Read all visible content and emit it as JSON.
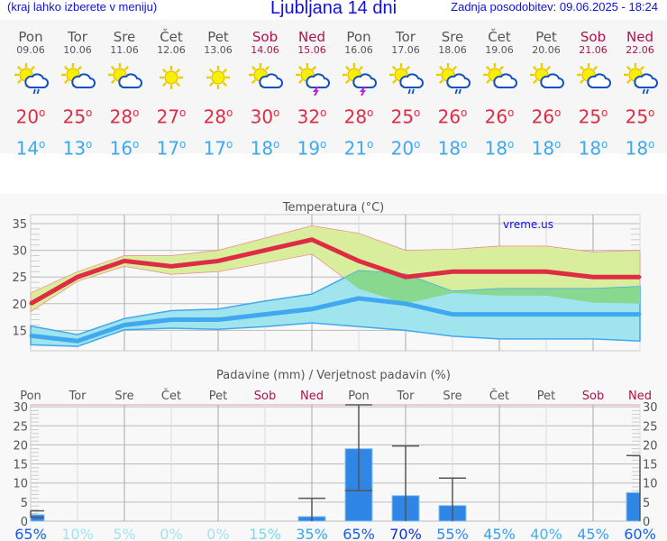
{
  "header": {
    "hint": "(kraj lahko izberete v meniju)",
    "title": "Ljubljana 14 dni",
    "updated": "Zadnja posodobitev: 09.06.2025 - 18:24"
  },
  "days": [
    {
      "name": "Pon",
      "date": "09.06",
      "icon": "sun-cloud-rain",
      "max": "20",
      "min": "14",
      "weekend": false
    },
    {
      "name": "Tor",
      "date": "10.06",
      "icon": "sun-cloud",
      "max": "25",
      "min": "13",
      "weekend": false
    },
    {
      "name": "Sre",
      "date": "11.06",
      "icon": "sun-cloud",
      "max": "28",
      "min": "16",
      "weekend": false
    },
    {
      "name": "Čet",
      "date": "12.06",
      "icon": "sun",
      "max": "27",
      "min": "17",
      "weekend": false
    },
    {
      "name": "Pet",
      "date": "13.06",
      "icon": "sun",
      "max": "28",
      "min": "17",
      "weekend": false
    },
    {
      "name": "Sob",
      "date": "14.06",
      "icon": "sun-cloud",
      "max": "30",
      "min": "18",
      "weekend": true
    },
    {
      "name": "Ned",
      "date": "15.06",
      "icon": "sun-cloud-storm",
      "max": "32",
      "min": "19",
      "weekend": true
    },
    {
      "name": "Pon",
      "date": "16.06",
      "icon": "sun-cloud-storm",
      "max": "28",
      "min": "21",
      "weekend": false
    },
    {
      "name": "Tor",
      "date": "17.06",
      "icon": "sun-cloud-rain",
      "max": "25",
      "min": "20",
      "weekend": false
    },
    {
      "name": "Sre",
      "date": "18.06",
      "icon": "sun-cloud-rain",
      "max": "26",
      "min": "18",
      "weekend": false
    },
    {
      "name": "Čet",
      "date": "19.06",
      "icon": "sun-cloud",
      "max": "26",
      "min": "18",
      "weekend": false
    },
    {
      "name": "Pet",
      "date": "20.06",
      "icon": "sun-cloud",
      "max": "26",
      "min": "18",
      "weekend": false
    },
    {
      "name": "Sob",
      "date": "21.06",
      "icon": "sun-cloud",
      "max": "25",
      "min": "18",
      "weekend": true
    },
    {
      "name": "Ned",
      "date": "22.06",
      "icon": "sun-cloud-rain",
      "max": "25",
      "min": "18",
      "weekend": true
    }
  ],
  "degree": "o",
  "chart_data": [
    {
      "type": "area",
      "title": "Temperatura (°C)",
      "watermark": "vreme.us",
      "ylim": [
        12,
        36
      ],
      "yticks": [
        15,
        20,
        25,
        30,
        35
      ],
      "grid": true,
      "series": [
        {
          "role": "max-mean",
          "values": [
            20,
            25,
            28,
            27,
            28,
            30,
            32,
            28,
            25,
            26,
            26,
            26,
            25,
            25
          ],
          "color": "#dd2c44"
        },
        {
          "role": "max-upper",
          "values": [
            22,
            26,
            29,
            29,
            30,
            32.3,
            34.6,
            33.2,
            30,
            30.2,
            30.8,
            30.8,
            29.7,
            30
          ]
        },
        {
          "role": "max-lower",
          "values": [
            18.5,
            24.2,
            27,
            25.5,
            26,
            27.6,
            29.3,
            22.8,
            20,
            22,
            21.5,
            21.5,
            20.2,
            20
          ],
          "color": "#d8ee9c"
        },
        {
          "role": "min-mean",
          "values": [
            14,
            13,
            16,
            17,
            17,
            18,
            19,
            21,
            20,
            18,
            18,
            18,
            18,
            18
          ],
          "color": "#40a8ee"
        },
        {
          "role": "min-upper",
          "values": [
            15.8,
            14.2,
            17.2,
            18.7,
            19,
            20.5,
            21.8,
            26.2,
            25.5,
            22.3,
            22.8,
            22.8,
            22.8,
            23.2
          ]
        },
        {
          "role": "min-lower",
          "values": [
            12.3,
            12,
            15.1,
            15.4,
            15.2,
            15.7,
            16.4,
            15.7,
            15,
            13.9,
            13.4,
            13.4,
            13.4,
            13
          ],
          "color": "#a0e4ee"
        }
      ]
    },
    {
      "type": "bar",
      "title": "Padavine (mm) / Verjetnost padavin (%)",
      "ylim": [
        0,
        31
      ],
      "yticks": [
        0,
        5,
        10,
        15,
        20,
        25,
        30
      ],
      "grid": true,
      "categories": [
        "Pon",
        "Tor",
        "Sre",
        "Čet",
        "Pet",
        "Sob",
        "Ned",
        "Pon",
        "Tor",
        "Sre",
        "Čet",
        "Pet",
        "Sob",
        "Ned"
      ],
      "values": [
        1.7,
        0,
        0,
        0,
        0,
        0,
        1.2,
        19,
        6.7,
        4.1,
        0,
        0,
        0,
        7.5
      ],
      "err_low": [
        1,
        0,
        0,
        0,
        0,
        0,
        0,
        8,
        0,
        0,
        0,
        0,
        0,
        0
      ],
      "err_high": [
        2.7,
        0,
        0,
        0,
        0,
        0,
        6,
        30.5,
        19.7,
        11.3,
        0,
        0,
        0,
        17.2
      ],
      "probability": [
        "65%",
        "10%",
        "5%",
        "0%",
        "0%",
        "15%",
        "35%",
        "65%",
        "70%",
        "55%",
        "45%",
        "40%",
        "45%",
        "60%"
      ],
      "prob_colors": [
        "#1a5ce0",
        "#a4e2f2",
        "#a4e2f2",
        "#a4e2f2",
        "#a4e2f2",
        "#80d6f0",
        "#3ca4ee",
        "#1a5ce0",
        "#1030d0",
        "#3488e8",
        "#3a9cee",
        "#4cb0f0",
        "#3a9cee",
        "#1a5ce0"
      ],
      "bar_color": "#2f86e4"
    }
  ]
}
